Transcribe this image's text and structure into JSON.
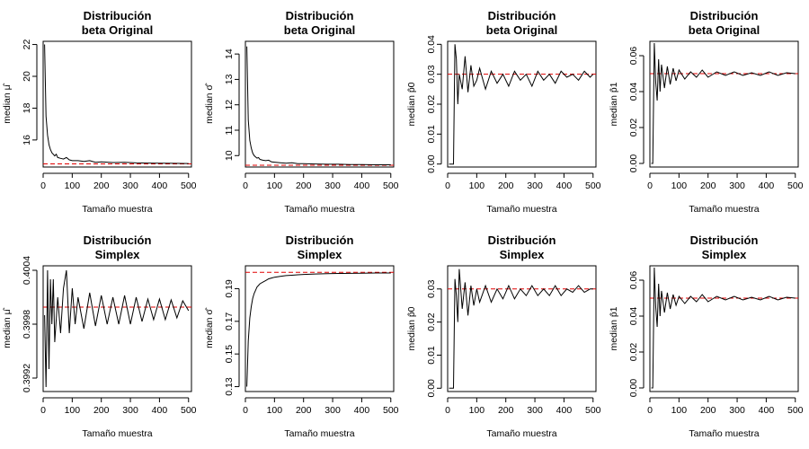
{
  "chart_data": [
    {
      "type": "line",
      "title": [
        "Distribución",
        "beta Original"
      ],
      "xlabel": "Tamaño muestra",
      "ylabel": "median μ̂",
      "xlim": [
        0,
        510
      ],
      "ylim": [
        14.3,
        22.2
      ],
      "xticks": [
        0,
        100,
        200,
        300,
        400,
        500
      ],
      "yticks": [
        16,
        18,
        20,
        22
      ],
      "reference_line": 14.5,
      "reference_color": "#e00000",
      "x": [
        5,
        10,
        15,
        20,
        25,
        30,
        35,
        40,
        45,
        50,
        60,
        70,
        80,
        90,
        100,
        120,
        140,
        160,
        180,
        200,
        240,
        280,
        320,
        360,
        400,
        450,
        500
      ],
      "y": [
        22.0,
        17.5,
        16.3,
        15.7,
        15.4,
        15.2,
        15.1,
        15.0,
        15.1,
        14.9,
        14.85,
        14.8,
        14.9,
        14.75,
        14.7,
        14.7,
        14.65,
        14.7,
        14.6,
        14.62,
        14.58,
        14.6,
        14.56,
        14.55,
        14.54,
        14.53,
        14.52
      ]
    },
    {
      "type": "line",
      "title": [
        "Distribución",
        "beta Original"
      ],
      "xlabel": "Tamaño muestra",
      "ylabel": "median σ̂",
      "xlim": [
        0,
        510
      ],
      "ylim": [
        9.55,
        14.5
      ],
      "xticks": [
        0,
        100,
        200,
        300,
        400,
        500
      ],
      "yticks": [
        10,
        11,
        12,
        13,
        14
      ],
      "reference_line": 9.62,
      "reference_color": "#e00000",
      "x": [
        5,
        10,
        15,
        20,
        25,
        30,
        35,
        40,
        45,
        50,
        60,
        70,
        80,
        90,
        100,
        120,
        140,
        160,
        180,
        200,
        240,
        280,
        320,
        360,
        400,
        450,
        500
      ],
      "y": [
        14.3,
        11.4,
        10.6,
        10.3,
        10.1,
        10.0,
        9.95,
        9.9,
        9.92,
        9.85,
        9.82,
        9.8,
        9.82,
        9.75,
        9.74,
        9.72,
        9.7,
        9.72,
        9.68,
        9.68,
        9.67,
        9.66,
        9.66,
        9.65,
        9.65,
        9.64,
        9.64
      ]
    },
    {
      "type": "line",
      "title": [
        "Distribución",
        "beta Original"
      ],
      "xlabel": "Tamaño muestra",
      "ylabel": "median p̂0",
      "xlim": [
        0,
        510
      ],
      "ylim": [
        -0.001,
        0.041
      ],
      "xticks": [
        0,
        100,
        200,
        300,
        400,
        500
      ],
      "yticks": [
        0.0,
        0.01,
        0.02,
        0.03,
        0.04
      ],
      "ytick_labels": [
        "0.00",
        "0.01",
        "0.02",
        "0.03",
        "0.04"
      ],
      "reference_line": 0.03,
      "reference_color": "#e00000",
      "x": [
        5,
        10,
        15,
        20,
        25,
        30,
        35,
        40,
        50,
        60,
        70,
        80,
        90,
        100,
        110,
        130,
        150,
        170,
        190,
        210,
        230,
        250,
        270,
        290,
        310,
        330,
        350,
        370,
        390,
        410,
        430,
        450,
        470,
        490,
        500
      ],
      "y": [
        0.0,
        0.0,
        0.0,
        0.0,
        0.04,
        0.035,
        0.02,
        0.03,
        0.025,
        0.036,
        0.024,
        0.033,
        0.026,
        0.028,
        0.032,
        0.025,
        0.031,
        0.027,
        0.03,
        0.026,
        0.031,
        0.028,
        0.03,
        0.026,
        0.031,
        0.028,
        0.03,
        0.027,
        0.031,
        0.029,
        0.03,
        0.028,
        0.031,
        0.029,
        0.03
      ]
    },
    {
      "type": "line",
      "title": [
        "Distribución",
        "beta Original"
      ],
      "xlabel": "Tamaño muestra",
      "ylabel": "median p̂1",
      "xlim": [
        0,
        510
      ],
      "ylim": [
        -0.002,
        0.068
      ],
      "xticks": [
        0,
        100,
        200,
        300,
        400,
        500
      ],
      "yticks": [
        0.0,
        0.02,
        0.04,
        0.06
      ],
      "ytick_labels": [
        "0.00",
        "0.02",
        "0.04",
        "0.06"
      ],
      "reference_line": 0.05,
      "reference_color": "#e00000",
      "x": [
        5,
        10,
        15,
        20,
        25,
        30,
        35,
        40,
        50,
        60,
        70,
        80,
        90,
        100,
        120,
        140,
        160,
        180,
        200,
        230,
        260,
        290,
        320,
        350,
        380,
        410,
        440,
        470,
        500
      ],
      "y": [
        0.0,
        0.0,
        0.067,
        0.045,
        0.035,
        0.058,
        0.04,
        0.055,
        0.042,
        0.054,
        0.044,
        0.053,
        0.046,
        0.052,
        0.047,
        0.051,
        0.048,
        0.052,
        0.048,
        0.051,
        0.049,
        0.051,
        0.049,
        0.0505,
        0.049,
        0.051,
        0.049,
        0.0505,
        0.05
      ]
    },
    {
      "type": "line",
      "title": [
        "Distribución",
        "Simplex"
      ],
      "xlabel": "Tamaño muestra",
      "ylabel": "median μ̂",
      "xlim": [
        0,
        510
      ],
      "ylim": [
        0.39905,
        0.40045
      ],
      "xticks": [
        0,
        100,
        200,
        300,
        400,
        500
      ],
      "yticks": [
        0.3992,
        0.3998,
        0.4004
      ],
      "ytick_labels": [
        "0.3992",
        "0.3998",
        "0.4004"
      ],
      "reference_line": 0.39999,
      "reference_color": "#e00000",
      "x": [
        5,
        10,
        15,
        20,
        25,
        30,
        35,
        40,
        50,
        60,
        70,
        80,
        90,
        100,
        110,
        120,
        140,
        160,
        180,
        200,
        220,
        240,
        260,
        280,
        300,
        320,
        340,
        360,
        380,
        400,
        420,
        440,
        460,
        480,
        500
      ],
      "y": [
        0.3999,
        0.3991,
        0.4004,
        0.3993,
        0.4003,
        0.3998,
        0.4003,
        0.3996,
        0.4001,
        0.3997,
        0.4002,
        0.4004,
        0.3997,
        0.4002,
        0.3998,
        0.4001,
        0.39975,
        0.40015,
        0.39978,
        0.40012,
        0.3998,
        0.4001,
        0.3998,
        0.40012,
        0.3998,
        0.4001,
        0.39983,
        0.40008,
        0.39985,
        0.40008,
        0.39985,
        0.40007,
        0.39987,
        0.40006,
        0.39995
      ]
    },
    {
      "type": "line",
      "title": [
        "Distribución",
        "Simplex"
      ],
      "xlabel": "Tamaño muestra",
      "ylabel": "median σ̂",
      "xlim": [
        0,
        510
      ],
      "ylim": [
        0.127,
        0.204
      ],
      "xticks": [
        0,
        100,
        200,
        300,
        400,
        500
      ],
      "yticks": [
        0.13,
        0.15,
        0.17,
        0.19
      ],
      "ytick_labels": [
        "0.13",
        "0.15",
        "0.17",
        "0.19"
      ],
      "reference_line": 0.2,
      "reference_color": "#e00000",
      "x": [
        5,
        10,
        15,
        20,
        25,
        30,
        35,
        40,
        50,
        60,
        70,
        80,
        90,
        100,
        120,
        140,
        160,
        180,
        200,
        240,
        280,
        320,
        360,
        400,
        450,
        500
      ],
      "y": [
        0.13,
        0.158,
        0.172,
        0.179,
        0.184,
        0.187,
        0.189,
        0.191,
        0.193,
        0.194,
        0.195,
        0.196,
        0.1965,
        0.197,
        0.1975,
        0.198,
        0.1982,
        0.1985,
        0.1987,
        0.199,
        0.1992,
        0.1993,
        0.1994,
        0.1995,
        0.1996,
        0.1996
      ]
    },
    {
      "type": "line",
      "title": [
        "Distribución",
        "Simplex"
      ],
      "xlabel": "Tamaño muestra",
      "ylabel": "median p̂0",
      "xlim": [
        0,
        510
      ],
      "ylim": [
        -0.001,
        0.037
      ],
      "xticks": [
        0,
        100,
        200,
        300,
        400,
        500
      ],
      "yticks": [
        0.0,
        0.01,
        0.02,
        0.03
      ],
      "ytick_labels": [
        "0.00",
        "0.01",
        "0.02",
        "0.03"
      ],
      "reference_line": 0.03,
      "reference_color": "#e00000",
      "x": [
        5,
        10,
        15,
        20,
        25,
        30,
        35,
        40,
        50,
        60,
        70,
        80,
        90,
        100,
        110,
        130,
        150,
        170,
        190,
        210,
        230,
        250,
        270,
        290,
        310,
        330,
        350,
        370,
        390,
        410,
        430,
        450,
        470,
        490,
        500
      ],
      "y": [
        0.0,
        0.0,
        0.0,
        0.0,
        0.033,
        0.028,
        0.02,
        0.036,
        0.024,
        0.032,
        0.022,
        0.031,
        0.025,
        0.03,
        0.026,
        0.031,
        0.026,
        0.03,
        0.027,
        0.031,
        0.027,
        0.03,
        0.028,
        0.031,
        0.028,
        0.03,
        0.028,
        0.031,
        0.028,
        0.03,
        0.029,
        0.031,
        0.029,
        0.03,
        0.03
      ]
    },
    {
      "type": "line",
      "title": [
        "Distribución",
        "Simplex"
      ],
      "xlabel": "Tamaño muestra",
      "ylabel": "median p̂1",
      "xlim": [
        0,
        510
      ],
      "ylim": [
        -0.002,
        0.068
      ],
      "xticks": [
        0,
        100,
        200,
        300,
        400,
        500
      ],
      "yticks": [
        0.0,
        0.02,
        0.04,
        0.06
      ],
      "ytick_labels": [
        "0.00",
        "0.02",
        "0.04",
        "0.06"
      ],
      "reference_line": 0.05,
      "reference_color": "#e00000",
      "x": [
        5,
        10,
        15,
        20,
        25,
        30,
        35,
        40,
        50,
        60,
        70,
        80,
        90,
        100,
        120,
        140,
        160,
        180,
        200,
        230,
        260,
        290,
        320,
        350,
        380,
        410,
        440,
        470,
        500
      ],
      "y": [
        0.0,
        0.0,
        0.067,
        0.045,
        0.034,
        0.058,
        0.04,
        0.054,
        0.042,
        0.053,
        0.044,
        0.052,
        0.046,
        0.051,
        0.047,
        0.051,
        0.048,
        0.052,
        0.048,
        0.051,
        0.049,
        0.051,
        0.049,
        0.0505,
        0.049,
        0.051,
        0.049,
        0.0505,
        0.05
      ]
    }
  ]
}
